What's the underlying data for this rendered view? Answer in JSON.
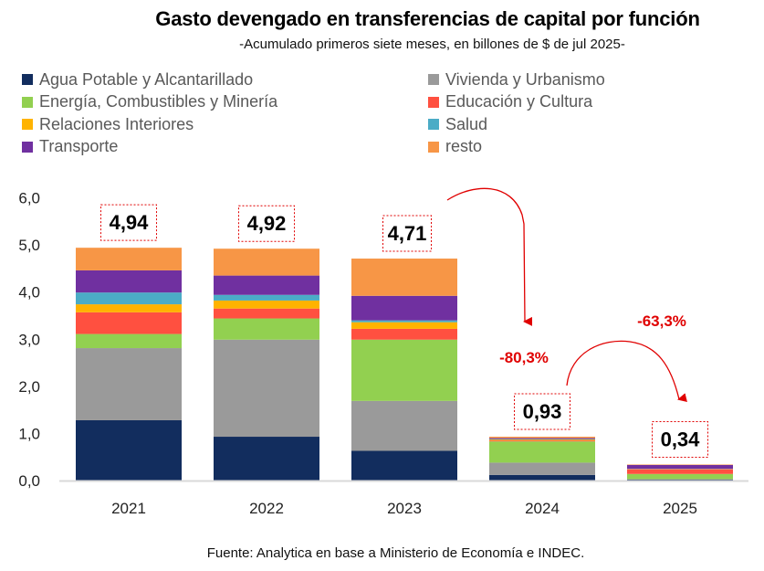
{
  "chart_data": {
    "type": "bar",
    "stacked": true,
    "title": "Gasto devengado en transferencias de capital por función",
    "subtitle": "-Acumulado primeros siete meses, en billones de $ de jul 2025-",
    "xlabel": "",
    "ylabel": "",
    "ylim": [
      0,
      6
    ],
    "yticks": [
      "0,0",
      "1,0",
      "2,0",
      "3,0",
      "4,0",
      "5,0",
      "6,0"
    ],
    "ytick_values": [
      0,
      1,
      2,
      3,
      4,
      5,
      6
    ],
    "grid": false,
    "legend_position": "top",
    "categories": [
      "2021",
      "2022",
      "2023",
      "2024",
      "2025"
    ],
    "series": [
      {
        "name": "Agua Potable y Alcantarillado",
        "color": "#122D5E",
        "values": [
          1.28,
          0.93,
          0.63,
          0.12,
          0.02
        ]
      },
      {
        "name": "Vivienda y Urbanismo",
        "color": "#9A9A9A",
        "values": [
          1.53,
          2.06,
          1.06,
          0.26,
          0.01
        ]
      },
      {
        "name": "Energía, Combustibles y Minería",
        "color": "#92D050",
        "values": [
          0.3,
          0.45,
          1.3,
          0.45,
          0.11
        ]
      },
      {
        "name": "Educación y Cultura",
        "color": "#FF5040",
        "values": [
          0.46,
          0.21,
          0.23,
          0.02,
          0.1
        ]
      },
      {
        "name": "Relaciones Interiores",
        "color": "#FFB300",
        "values": [
          0.17,
          0.17,
          0.14,
          0.02,
          0.005
        ]
      },
      {
        "name": "Salud",
        "color": "#4BACC6",
        "values": [
          0.25,
          0.12,
          0.04,
          0.01,
          0.005
        ]
      },
      {
        "name": "Transporte",
        "color": "#7030A0",
        "values": [
          0.47,
          0.41,
          0.52,
          0.02,
          0.08
        ]
      },
      {
        "name": "resto",
        "color": "#F79646",
        "values": [
          0.48,
          0.57,
          0.79,
          0.03,
          0.01
        ]
      }
    ],
    "totals": [
      4.94,
      4.92,
      4.71,
      0.93,
      0.34
    ],
    "total_labels": [
      "4,94",
      "4,92",
      "4,71",
      "0,93",
      "0,34"
    ],
    "annotations": [
      {
        "text": "-80,3%",
        "from": "2023",
        "to": "2024",
        "color": "#E00000"
      },
      {
        "text": "-63,3%",
        "from": "2024",
        "to": "2025",
        "color": "#E00000"
      }
    ],
    "source": "Fuente: Analytica en base a Ministerio de Economía e INDEC."
  },
  "legend": [
    {
      "label": "Agua Potable y Alcantarillado",
      "color": "#122D5E"
    },
    {
      "label": "Vivienda y Urbanismo",
      "color": "#9A9A9A"
    },
    {
      "label": "Energía, Combustibles y Minería",
      "color": "#92D050"
    },
    {
      "label": "Educación y Cultura",
      "color": "#FF5040"
    },
    {
      "label": "Relaciones Interiores",
      "color": "#FFB300"
    },
    {
      "label": "Salud",
      "color": "#4BACC6"
    },
    {
      "label": "Transporte",
      "color": "#7030A0"
    },
    {
      "label": "resto",
      "color": "#F79646"
    }
  ]
}
